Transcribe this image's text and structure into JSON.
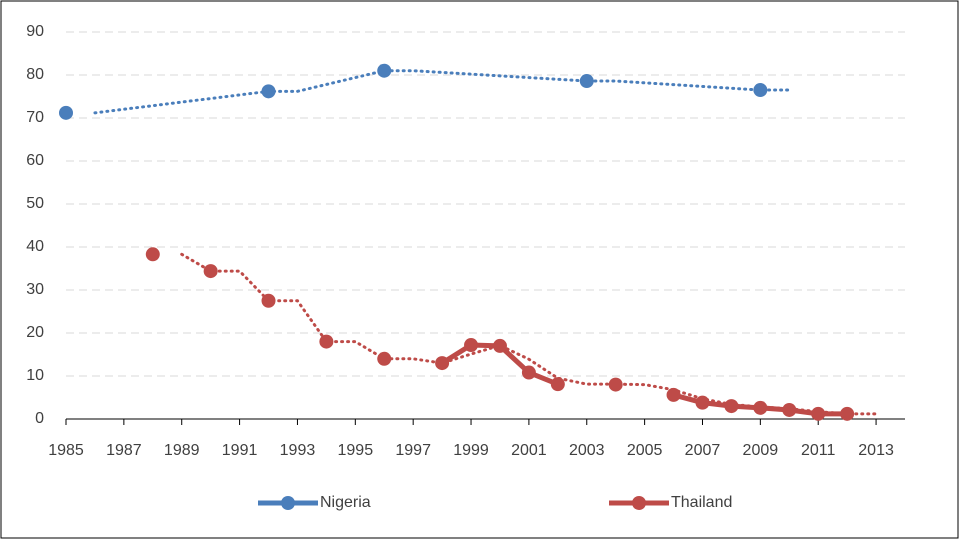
{
  "chart_data": {
    "type": "line",
    "series": [
      {
        "name": "Nigeria",
        "color": "#4a7ebb",
        "x": [
          1985,
          1986,
          1987,
          1988,
          1989,
          1990,
          1991,
          1992,
          1993,
          1994,
          1995,
          1996,
          1997,
          1998,
          1999,
          2000,
          2001,
          2002,
          2003,
          2004,
          2005,
          2006,
          2007,
          2008,
          2009
        ],
        "values": [
          71.2,
          null,
          null,
          null,
          null,
          null,
          null,
          76.2,
          null,
          null,
          null,
          81.0,
          null,
          null,
          null,
          null,
          null,
          null,
          78.6,
          null,
          null,
          null,
          null,
          null,
          76.5
        ],
        "trend": {
          "x": [
            1986,
            1992,
            1993,
            1996,
            1997,
            2003,
            2004,
            2009,
            2010
          ],
          "values": [
            71.2,
            76.2,
            76.2,
            81.0,
            81.0,
            78.6,
            78.6,
            76.5,
            76.5
          ]
        }
      },
      {
        "name": "Thailand",
        "color": "#be4b48",
        "x": [
          1988,
          1989,
          1990,
          1991,
          1992,
          1993,
          1994,
          1995,
          1996,
          1997,
          1998,
          1999,
          2000,
          2001,
          2002,
          2003,
          2004,
          2005,
          2006,
          2007,
          2008,
          2009,
          2010,
          2011,
          2012
        ],
        "values": [
          38.3,
          null,
          34.4,
          null,
          27.5,
          null,
          18.0,
          null,
          14.0,
          null,
          13.0,
          17.2,
          17.0,
          10.8,
          8.1,
          null,
          8.0,
          null,
          5.6,
          3.8,
          3.0,
          2.6,
          2.1,
          1.2,
          1.2
        ],
        "trend": {
          "x": [
            1989,
            1990,
            1991,
            1992,
            1993,
            1994,
            1995,
            1996,
            1997,
            1998,
            1999,
            2000,
            2001,
            2002,
            2003,
            2004,
            2005,
            2006,
            2007,
            2008,
            2009,
            2010,
            2011,
            2012,
            2013
          ],
          "values": [
            38.3,
            34.4,
            34.4,
            27.5,
            27.5,
            18.0,
            18.0,
            14.0,
            14.0,
            13.0,
            15.1,
            17.1,
            13.9,
            9.5,
            8.1,
            8.1,
            8.0,
            6.8,
            4.7,
            3.4,
            2.8,
            2.4,
            1.7,
            1.2,
            1.2
          ]
        }
      }
    ],
    "xlim": [
      1985,
      2014
    ],
    "xticks": [
      1985,
      1987,
      1989,
      1991,
      1993,
      1995,
      1997,
      1999,
      2001,
      2003,
      2005,
      2007,
      2009,
      2011,
      2013
    ],
    "ylim": [
      0,
      90
    ],
    "yticks": [
      0,
      10,
      20,
      30,
      40,
      50,
      60,
      70,
      80,
      90
    ],
    "grid": true,
    "legend": "bottom"
  }
}
